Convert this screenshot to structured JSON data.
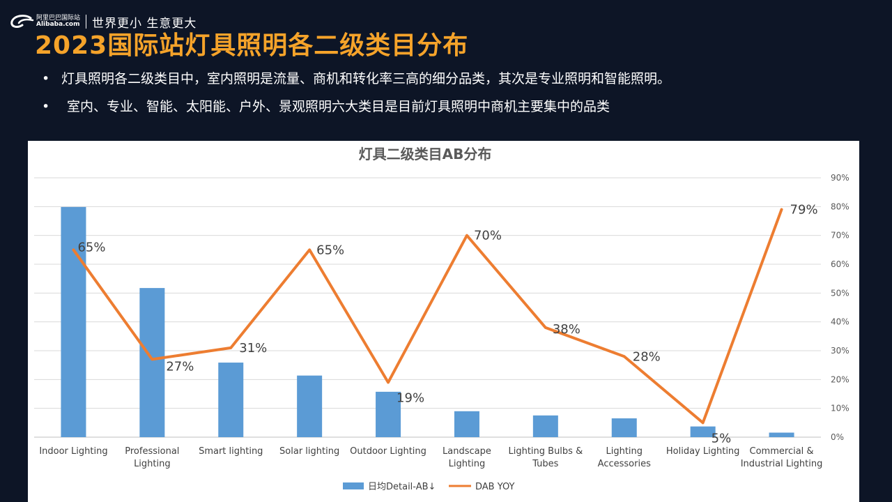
{
  "brand": {
    "logo_cn": "阿里巴巴国际站",
    "logo_en": "Alibaba.com",
    "slogan": "世界更小 生意更大",
    "accent": "#f5a32a"
  },
  "page_title": "2023国际站灯具照明各二级类目分布",
  "bullets": [
    "灯具照明各二级类目中，室内照明是流量、商机和转化率三高的细分品类，其次是专业照明和智能照明。",
    "室内、专业、智能、太阳能、户外、景观照明六大类目是目前灯具照明中商机主要集中的品类"
  ],
  "chart_data": {
    "type": "bar",
    "title": "灯具二级类目AB分布",
    "categories": [
      [
        "Indoor Lighting"
      ],
      [
        "Professional",
        "Lighting"
      ],
      [
        "Smart lighting"
      ],
      [
        "Solar lighting"
      ],
      [
        "Outdoor Lighting"
      ],
      [
        "Landscape",
        "Lighting"
      ],
      [
        "Lighting Bulbs &",
        "Tubes"
      ],
      [
        "Lighting",
        "Accessories"
      ],
      [
        "Holiday Lighting"
      ],
      [
        "Commercial &",
        "Industrial Lighting"
      ]
    ],
    "series": [
      {
        "name": "日均Detail-AB↓",
        "kind": "bar",
        "axis": "left",
        "color": "#5b9bd5",
        "values": [
          71,
          46,
          23,
          19,
          14,
          8,
          6.7,
          5.8,
          3.3,
          1.4
        ]
      },
      {
        "name": "DAB YOY",
        "kind": "line",
        "axis": "right",
        "color": "#ed7d31",
        "values": [
          65,
          27,
          31,
          65,
          19,
          70,
          38,
          28,
          5,
          79
        ],
        "labels": [
          "65%",
          "27%",
          "31%",
          "65%",
          "19%",
          "70%",
          "38%",
          "28%",
          "5%",
          "79%"
        ]
      }
    ],
    "y_right_ticks": [
      "0%",
      "10%",
      "20%",
      "30%",
      "40%",
      "50%",
      "60%",
      "70%",
      "80%",
      "90%"
    ],
    "y_right_lim": [
      0,
      90
    ],
    "y_left_lim": [
      0,
      80
    ],
    "grid": true,
    "legend": "bottom"
  }
}
